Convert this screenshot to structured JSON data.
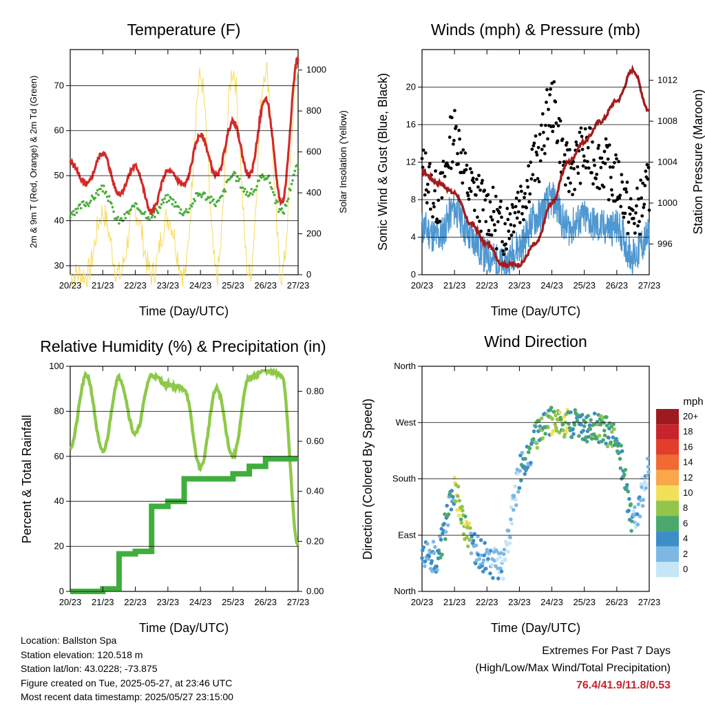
{
  "charts": {
    "temperature": {
      "title": "Temperature (F)",
      "ylabel_left": "2m & 9m T (Red, Orange) & 2m Td (Green)",
      "ylabel_right": "Solar Insolation (Yellow)",
      "xlabel": "Time (Day/UTC)",
      "x_ticks": [
        "20/23",
        "21/23",
        "22/23",
        "23/23",
        "24/23",
        "25/23",
        "26/23",
        "27/23"
      ],
      "y_ticks": [
        "30",
        "40",
        "50",
        "60",
        "70"
      ],
      "y2_ticks": [
        "0",
        "200",
        "400",
        "600",
        "800",
        "1000"
      ]
    },
    "winds": {
      "title": "Winds (mph) & Pressure (mb)",
      "ylabel_left": "Sonic Wind & Gust (Blue, Black)",
      "ylabel_right": "Station Pressure (Maroon)",
      "xlabel": "Time (Day/UTC)",
      "x_ticks": [
        "20/23",
        "21/23",
        "22/23",
        "23/23",
        "24/23",
        "25/23",
        "26/23",
        "27/23"
      ],
      "y_ticks": [
        "0",
        "4",
        "8",
        "12",
        "16",
        "20"
      ],
      "y2_ticks": [
        "996",
        "1000",
        "1004",
        "1008",
        "1012"
      ]
    },
    "humidity": {
      "title": "Relative Humidity (%) & Precipitation (in)",
      "ylabel_left": "Percent & Total Rainfall",
      "xlabel": "Time (Day/UTC)",
      "x_ticks": [
        "20/23",
        "21/23",
        "22/23",
        "23/23",
        "24/23",
        "25/23",
        "26/23",
        "27/23"
      ],
      "y_ticks": [
        "0",
        "20",
        "40",
        "60",
        "80",
        "100"
      ],
      "y2_ticks": [
        "0.00",
        "0.20",
        "0.40",
        "0.60",
        "0.80"
      ]
    },
    "direction": {
      "title": "Wind Direction",
      "ylabel_left": "Direction (Colored By Speed)",
      "xlabel": "Time (Day/UTC)",
      "x_ticks": [
        "20/23",
        "21/23",
        "22/23",
        "23/23",
        "24/23",
        "25/23",
        "26/23",
        "27/23"
      ],
      "y_ticks": [
        "North",
        "East",
        "South",
        "West",
        "North"
      ],
      "legend_title": "mph",
      "legend_labels": [
        "20+",
        "18",
        "16",
        "14",
        "12",
        "10",
        "8",
        "6",
        "4",
        "2",
        "0"
      ]
    }
  },
  "chart_data": [
    {
      "type": "line",
      "x_days": [
        0,
        0.5,
        1,
        1.5,
        2,
        2.5,
        3,
        3.5,
        4,
        4.5,
        5,
        5.5,
        6,
        6.5,
        7
      ],
      "series": [
        {
          "values": [
            53,
            48,
            55,
            46,
            52,
            42,
            51,
            48,
            59,
            50,
            62,
            50,
            67,
            44,
            76
          ]
        },
        {
          "values": [
            41,
            44,
            47,
            40,
            43,
            41,
            45,
            42,
            46,
            44,
            50,
            46,
            50,
            42,
            52
          ]
        },
        {
          "values": [
            0,
            0,
            300,
            0,
            310,
            0,
            280,
            0,
            960,
            0,
            1000,
            0,
            1010,
            0,
            1000
          ]
        }
      ],
      "ylim": [
        28,
        78
      ],
      "y2lim": [
        0,
        1100
      ]
    },
    {
      "type": "line",
      "x_days": [
        0,
        0.5,
        1,
        1.5,
        2,
        2.5,
        3,
        3.5,
        4,
        4.5,
        5,
        5.5,
        6,
        6.5,
        7
      ],
      "series": [
        {
          "values": [
            5,
            4,
            7,
            4,
            2,
            1,
            3,
            6,
            8,
            5,
            6,
            5,
            5,
            2,
            4
          ]
        },
        {
          "values": [
            11,
            8,
            15,
            9,
            7,
            5,
            8,
            12,
            18,
            11,
            13,
            12,
            10,
            6,
            9
          ]
        },
        {
          "values": [
            1003,
            1002,
            1001,
            998,
            996,
            994,
            994,
            996,
            1000,
            1004,
            1006,
            1008,
            1010,
            1013,
            1009
          ]
        }
      ],
      "ylim": [
        0,
        24
      ],
      "y2lim": [
        993,
        1015
      ]
    },
    {
      "type": "line",
      "x_days": [
        0,
        0.5,
        1,
        1.5,
        2,
        2.5,
        3,
        3.5,
        4,
        4.5,
        5,
        5.5,
        6,
        6.5,
        7
      ],
      "series": [
        {
          "values": [
            64,
            96,
            62,
            95,
            70,
            96,
            92,
            90,
            55,
            90,
            60,
            95,
            98,
            96,
            20
          ]
        },
        {
          "values": [
            0,
            0,
            0.01,
            0.15,
            0.16,
            0.34,
            0.36,
            0.45,
            0.45,
            0.45,
            0.47,
            0.5,
            0.53,
            0.53,
            0.53
          ]
        }
      ],
      "ylim": [
        0,
        100
      ],
      "y2lim": [
        0,
        0.9
      ]
    },
    {
      "type": "scatter",
      "x_days": [
        0,
        0.5,
        1,
        1.5,
        2,
        2.5,
        3,
        3.5,
        4,
        4.5,
        5,
        5.5,
        6,
        6.5,
        7
      ],
      "series": [
        {
          "values": [
            60,
            55,
            165,
            75,
            50,
            40,
            190,
            245,
            275,
            270,
            260,
            260,
            250,
            100,
            200
          ]
        }
      ],
      "speed_mph": [
        3,
        4,
        8,
        3,
        2,
        1,
        4,
        6,
        8,
        5,
        6,
        6,
        5,
        2,
        3
      ],
      "ylim": [
        0,
        360
      ]
    }
  ],
  "info": {
    "location": "Location: Ballston Spa",
    "elevation": "Station elevation: 120.518 m",
    "latlon": "Station lat/lon: 43.0228; -73.875",
    "created": "Figure created on Tue, 2025-05-27, at 23:46 UTC",
    "recent": "Most recent data timestamp: 2025/05/27 23:15:00"
  },
  "extremes": {
    "line1": "Extremes For Past 7 Days",
    "line2": "(High/Low/Max Wind/Total Precipitation)",
    "values": "76.4/41.9/11.8/0.53"
  },
  "colors": {
    "temp": "#d42a2a",
    "dew": "#4cae3e",
    "solar": "#f6dc5c",
    "gust": "#000000",
    "wind": "#4e97d1",
    "pressure": "#a31d1d",
    "rh": "#8ec94a",
    "precip": "#3fae3c",
    "legend": [
      "#9d1b1f",
      "#c8242b",
      "#e33d2b",
      "#f06a33",
      "#f9a74a",
      "#f2e05a",
      "#92c64a",
      "#4aa86e",
      "#3c8dc8",
      "#7db8e4",
      "#c4e6f7"
    ]
  }
}
